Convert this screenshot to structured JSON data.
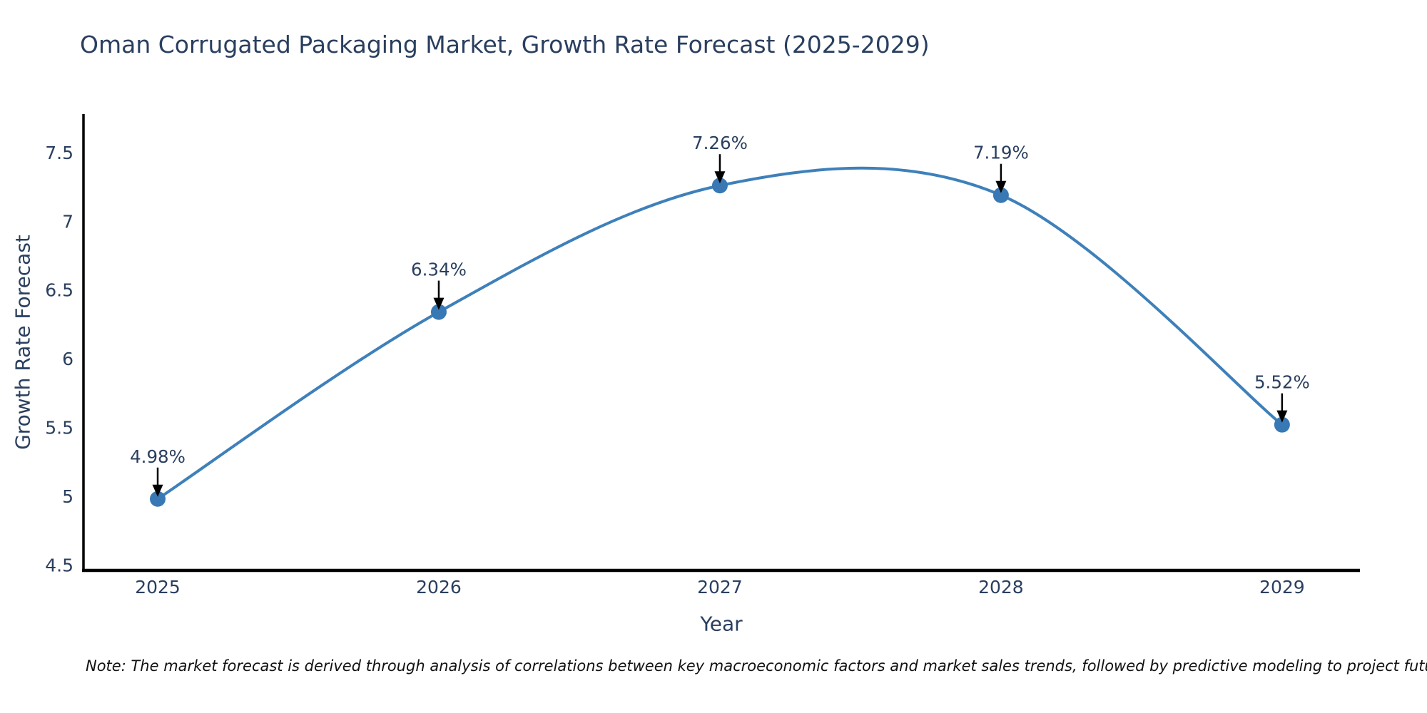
{
  "chart_data": {
    "type": "line",
    "title": "Oman Corrugated Packaging Market, Growth Rate Forecast (2025-2029)",
    "xlabel": "Year",
    "ylabel": "Growth Rate Forecast",
    "x": [
      2025,
      2026,
      2027,
      2028,
      2029
    ],
    "values": [
      4.98,
      6.34,
      7.26,
      7.19,
      5.52
    ],
    "point_labels": [
      "4.98%",
      "6.34%",
      "7.26%",
      "7.19%",
      "5.52%"
    ],
    "x_tick_labels": [
      "2025",
      "2026",
      "2027",
      "2028",
      "2029"
    ],
    "y_ticks": [
      4.5,
      5,
      5.5,
      6,
      6.5,
      7,
      7.5
    ],
    "y_tick_labels": [
      "4.5",
      "5",
      "5.5",
      "6",
      "6.5",
      "7",
      "7.5"
    ],
    "xlim": [
      2024.736,
      2029.277
    ],
    "ylim": [
      4.46,
      7.78
    ],
    "line_shape": "spline",
    "grid": false,
    "legend": false,
    "colors": {
      "line": "#3e80ba",
      "marker": "#3878b4",
      "axis": "#000000",
      "text": "#2a3f5f",
      "annotation_arrow": "#000000",
      "background": "#ffffff"
    }
  },
  "note": {
    "text": "Note: The market forecast is derived through analysis of correlations between key macroeconomic factors and market sales trends, followed by predictive modeling to project future sales."
  }
}
